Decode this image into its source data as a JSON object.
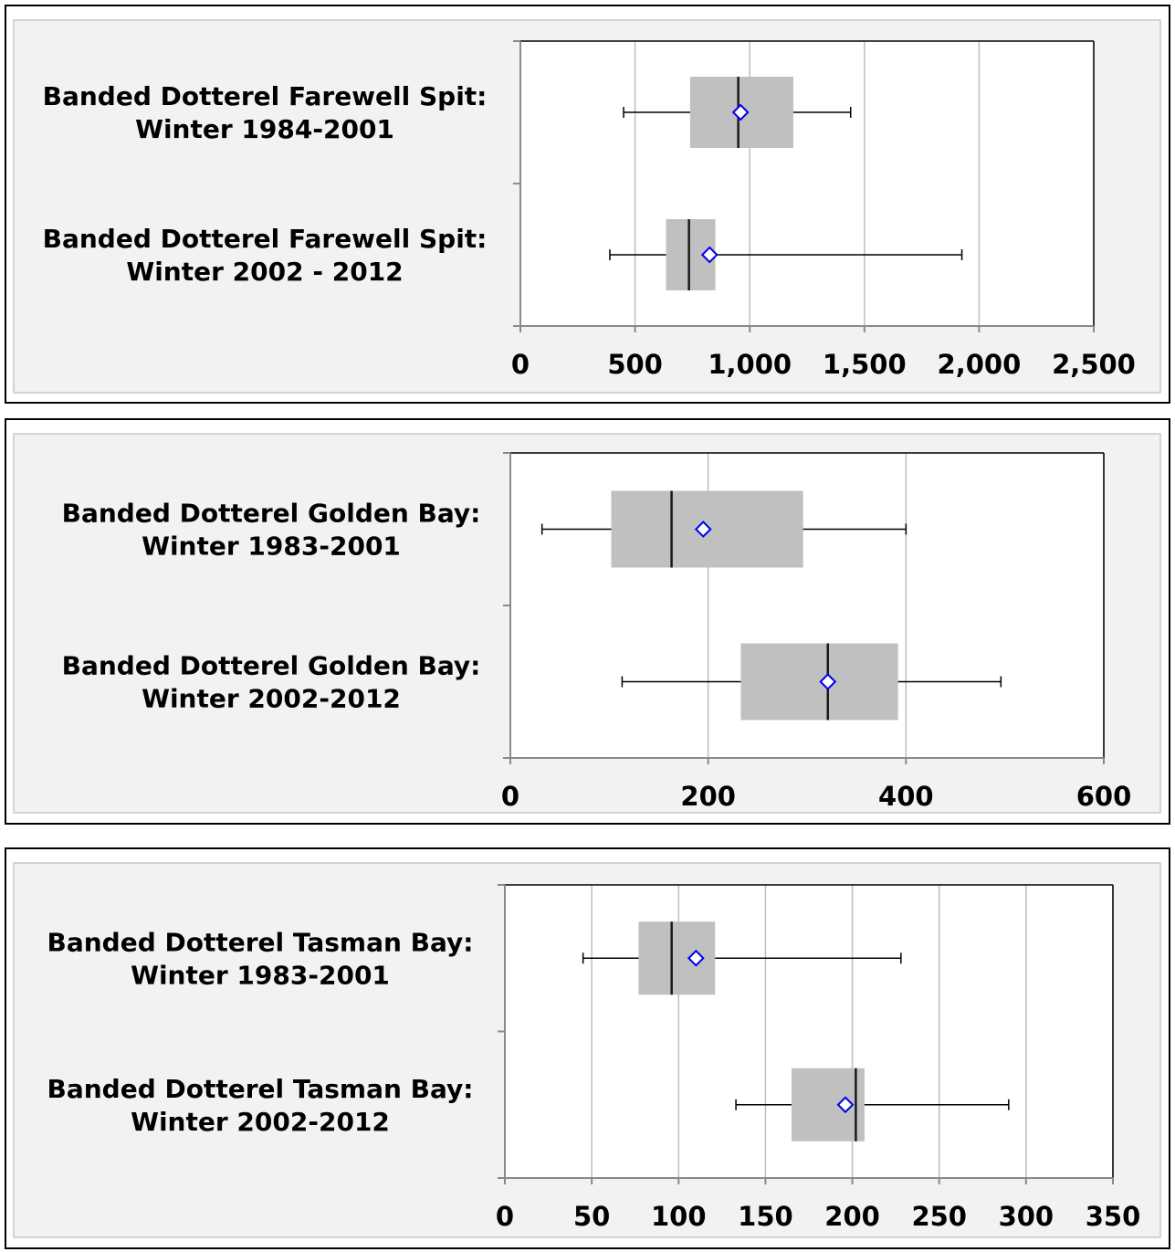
{
  "chart_data": [
    {
      "type": "boxplot",
      "orientation": "horizontal",
      "xlim": [
        0,
        2500
      ],
      "xticks": [
        0,
        500,
        1000,
        1500,
        2000,
        2500
      ],
      "xtick_labels": [
        "0",
        "500",
        "1,000",
        "1,500",
        "2,000",
        "2,500"
      ],
      "grid": true,
      "series": [
        {
          "label": [
            "Banded Dotterel Farewell Spit:",
            "Winter 1984-2001"
          ],
          "whisker_low": 450,
          "q1": 740,
          "median": 950,
          "q3": 1190,
          "whisker_high": 1440,
          "mean": 960
        },
        {
          "label": [
            "Banded Dotterel Farewell Spit:",
            "Winter 2002 - 2012"
          ],
          "whisker_low": 390,
          "q1": 635,
          "median": 735,
          "q3": 850,
          "whisker_high": 1925,
          "mean": 825
        }
      ]
    },
    {
      "type": "boxplot",
      "orientation": "horizontal",
      "xlim": [
        0,
        600
      ],
      "xticks": [
        0,
        200,
        400,
        600
      ],
      "xtick_labels": [
        "0",
        "200",
        "400",
        "600"
      ],
      "grid": true,
      "series": [
        {
          "label": [
            "Banded Dotterel Golden Bay:",
            "Winter  1983-2001"
          ],
          "whisker_low": 32,
          "q1": 102,
          "median": 163,
          "q3": 296,
          "whisker_high": 400,
          "mean": 195
        },
        {
          "label": [
            "Banded Dotterel Golden Bay:",
            "Winter  2002-2012"
          ],
          "whisker_low": 113,
          "q1": 233,
          "median": 321,
          "q3": 392,
          "whisker_high": 496,
          "mean": 321
        }
      ]
    },
    {
      "type": "boxplot",
      "orientation": "horizontal",
      "xlim": [
        0,
        350
      ],
      "xticks": [
        0,
        50,
        100,
        150,
        200,
        250,
        300,
        350
      ],
      "xtick_labels": [
        "0",
        "50",
        "100",
        "150",
        "200",
        "250",
        "300",
        "350"
      ],
      "grid": true,
      "series": [
        {
          "label": [
            "Banded Dotterel Tasman Bay:",
            "Winter  1983-2001"
          ],
          "whisker_low": 45,
          "q1": 77,
          "median": 96,
          "q3": 121,
          "whisker_high": 228,
          "mean": 110
        },
        {
          "label": [
            "Banded Dotterel Tasman Bay:",
            "Winter  2002-2012"
          ],
          "whisker_low": 133,
          "q1": 165,
          "median": 202,
          "q3": 207,
          "whisker_high": 290,
          "mean": 196
        }
      ]
    }
  ]
}
